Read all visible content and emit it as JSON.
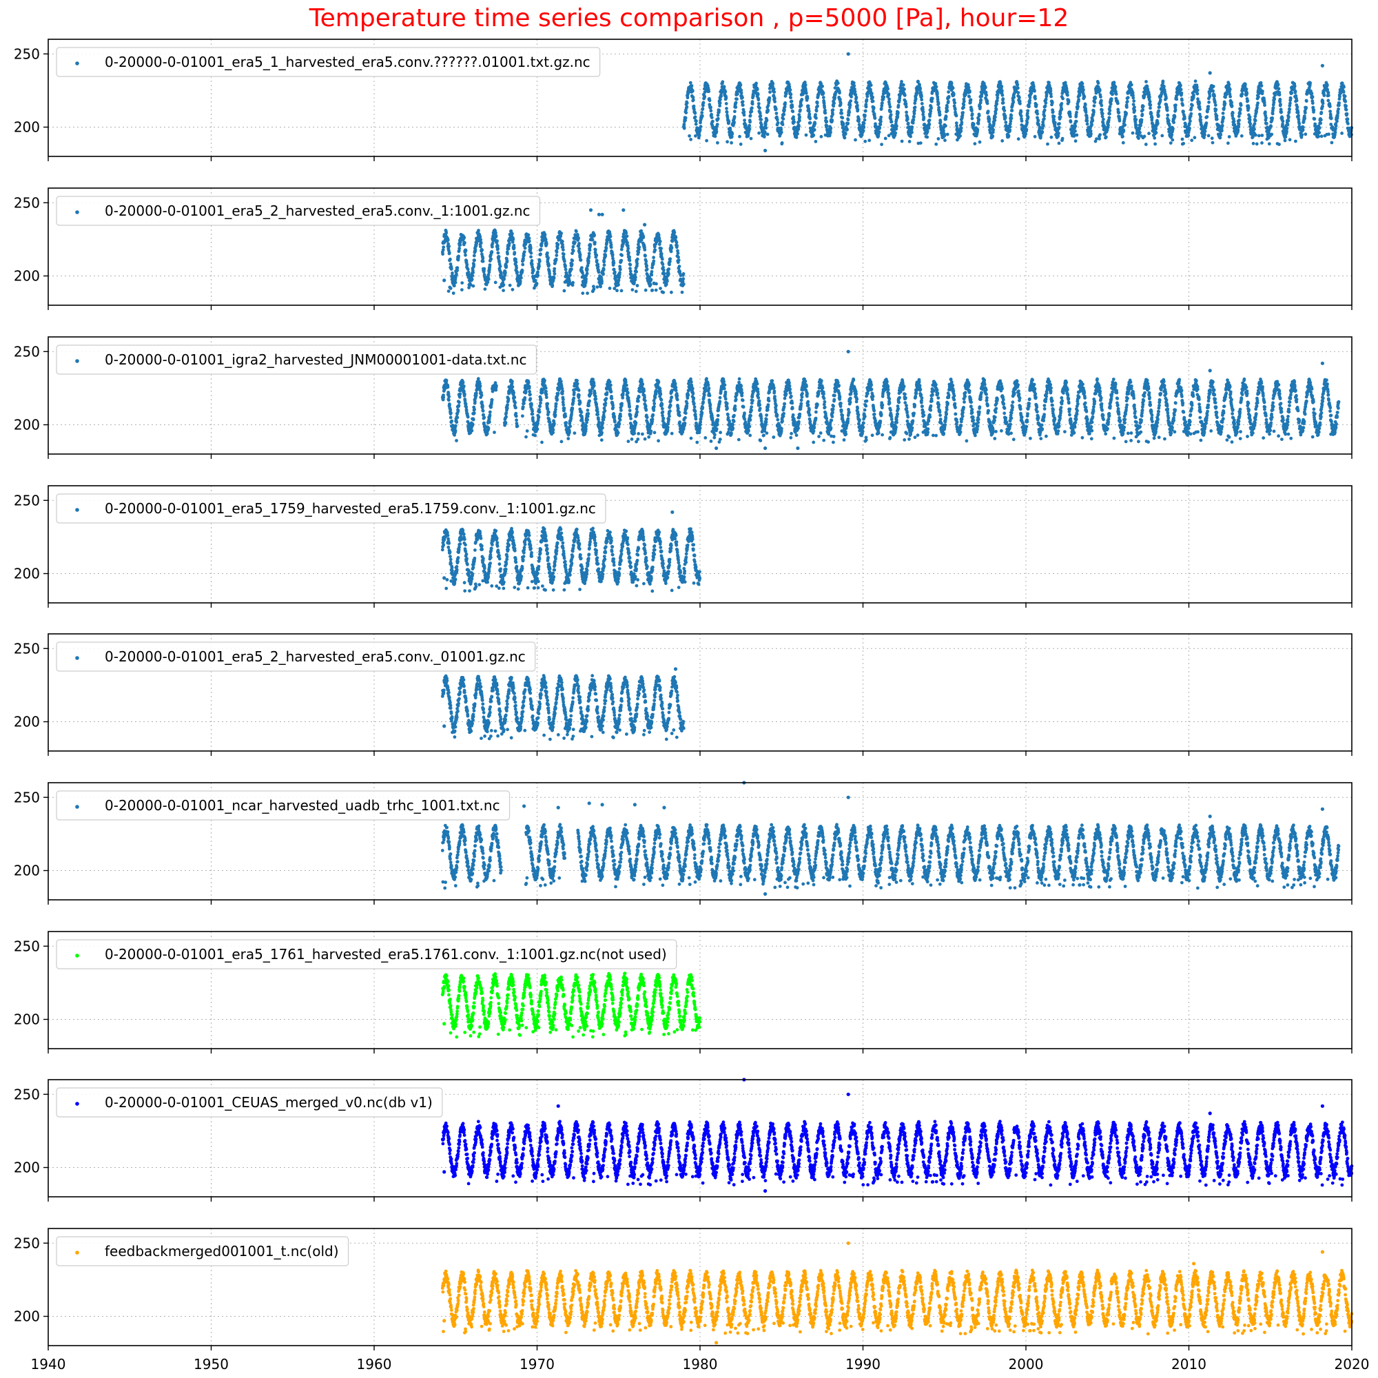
{
  "chart_data": {
    "type": "scatter",
    "title": "Temperature time series comparison , p=5000 [Pa], hour=12",
    "xlabel": "",
    "ylabel": "",
    "xlim": [
      1940,
      2020
    ],
    "ylim": [
      180,
      260
    ],
    "x_ticks": [
      "1940",
      "1950",
      "1960",
      "1970",
      "1980",
      "1990",
      "2000",
      "2010",
      "2020"
    ],
    "y_ticks": [
      "200",
      "250"
    ],
    "grid": true,
    "sharex": true,
    "legend_placement": "upper-left",
    "series": [
      {
        "name": "0-20000-0-01001_era5_1_harvested_era5.conv.??????.01001.txt.gz.nc",
        "color": "#1f77b4",
        "x_start": 1979.0,
        "x_end": 2020.0,
        "y_low": 196,
        "y_high": 228,
        "outliers": [
          [
            1984.0,
            184
          ],
          [
            1989.1,
            250
          ],
          [
            2011.3,
            237
          ],
          [
            2018.2,
            242
          ]
        ]
      },
      {
        "name": "0-20000-0-01001_era5_2_harvested_era5.conv._1:1001.gz.nc",
        "color": "#1f77b4",
        "x_start": 1964.2,
        "x_end": 1979.0,
        "y_low": 196,
        "y_high": 228,
        "outliers": [
          [
            1964.3,
            197
          ],
          [
            1973.3,
            245
          ],
          [
            1973.8,
            242
          ],
          [
            1974.0,
            242
          ],
          [
            1975.3,
            245
          ],
          [
            1976.6,
            235
          ]
        ]
      },
      {
        "name": "0-20000-0-01001_igra2_harvested_JNM00001001-data.txt.nc",
        "color": "#1f77b4",
        "x_start": 1964.2,
        "x_end": 2019.2,
        "y_low": 196,
        "y_high": 228,
        "gaps": [
          [
            1967.5,
            1968.0
          ],
          [
            1968.8,
            1969.1
          ]
        ],
        "outliers": [
          [
            1981.0,
            184
          ],
          [
            1984.0,
            184
          ],
          [
            1986.0,
            184
          ],
          [
            1989.1,
            250
          ],
          [
            2011.3,
            237
          ],
          [
            2018.2,
            242
          ]
        ]
      },
      {
        "name": "0-20000-0-01001_era5_1759_harvested_era5.1759.conv._1:1001.gz.nc",
        "color": "#1f77b4",
        "x_start": 1964.2,
        "x_end": 1980.0,
        "y_low": 196,
        "y_high": 228,
        "outliers": [
          [
            1964.3,
            197
          ],
          [
            1978.3,
            242
          ]
        ]
      },
      {
        "name": "0-20000-0-01001_era5_2_harvested_era5.conv._01001.gz.nc",
        "color": "#1f77b4",
        "x_start": 1964.2,
        "x_end": 1979.0,
        "y_low": 196,
        "y_high": 228,
        "outliers": [
          [
            1964.3,
            197
          ],
          [
            1978.5,
            236
          ]
        ]
      },
      {
        "name": "0-20000-0-01001_ncar_harvested_uadb_trhc_1001.txt.nc",
        "color": "#1f77b4",
        "x_start": 1964.2,
        "x_end": 2019.2,
        "y_low": 196,
        "y_high": 228,
        "gaps": [
          [
            1967.8,
            1969.3
          ],
          [
            1971.7,
            1972.5
          ]
        ],
        "outliers": [
          [
            1969.2,
            244
          ],
          [
            1971.3,
            243
          ],
          [
            1973.2,
            246
          ],
          [
            1974.0,
            245
          ],
          [
            1976.0,
            245
          ],
          [
            1977.8,
            243
          ],
          [
            1982.7,
            260
          ],
          [
            1984.0,
            184
          ],
          [
            1989.1,
            250
          ],
          [
            2011.3,
            237
          ],
          [
            2018.2,
            242
          ]
        ]
      },
      {
        "name": "0-20000-0-01001_era5_1761_harvested_era5.1761.conv._1:1001.gz.nc(not used)",
        "color": "#00ff00",
        "x_start": 1964.2,
        "x_end": 1980.0,
        "y_low": 196,
        "y_high": 228,
        "outliers": [
          [
            1964.3,
            197
          ]
        ]
      },
      {
        "name": "0-20000-0-01001_CEUAS_merged_v0.nc(db v1)",
        "color": "#0000ff",
        "x_start": 1964.2,
        "x_end": 2020.0,
        "y_low": 196,
        "y_high": 228,
        "outliers": [
          [
            1964.3,
            197
          ],
          [
            1971.3,
            242
          ],
          [
            1982.7,
            260
          ],
          [
            1984.0,
            184
          ],
          [
            1989.1,
            250
          ],
          [
            2011.3,
            237
          ],
          [
            2018.2,
            242
          ]
        ]
      },
      {
        "name": "feedbackmerged001001_t.nc(old)",
        "color": "#ffa500",
        "x_start": 1964.2,
        "x_end": 2020.0,
        "y_low": 196,
        "y_high": 228,
        "outliers": [
          [
            1964.3,
            197
          ],
          [
            1981.0,
            182
          ],
          [
            1989.1,
            250
          ],
          [
            2010.3,
            236
          ],
          [
            2018.2,
            244
          ]
        ]
      }
    ]
  }
}
